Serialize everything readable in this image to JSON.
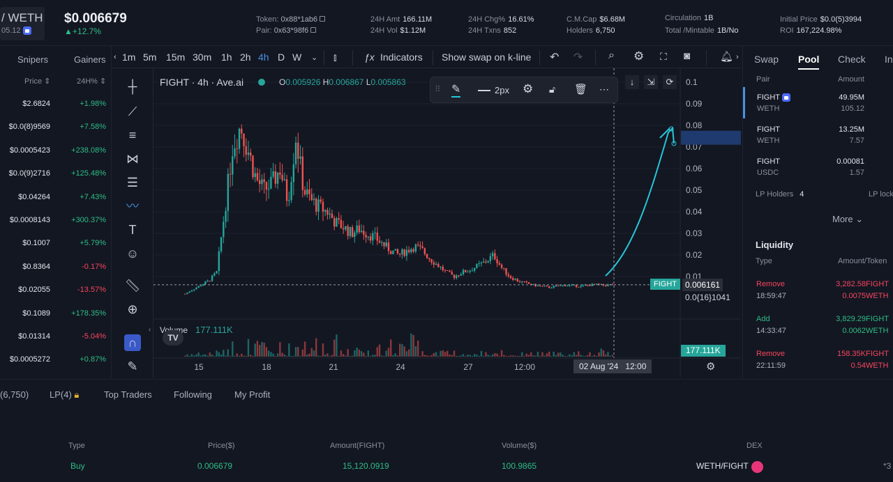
{
  "header": {
    "pair_short": "/ WETH",
    "pair_sub": "05.12",
    "price": "$0.006679",
    "change": "+12.7%",
    "token_label": "Token:",
    "token_value": "0x88*1ab6",
    "pair_label": "Pair:",
    "pair_value": "0x63*98f6",
    "amt_label": "24H Amt",
    "amt_value": "166.11M",
    "vol_label": "24H Vol",
    "vol_value": "$1.12M",
    "chg_label": "24H Chg%",
    "chg_value": "16.61%",
    "txns_label": "24H Txns",
    "txns_value": "852",
    "cmcap_label": "C.M.Cap",
    "cmcap_value": "$6.68M",
    "holders_label": "Holders",
    "holders_value": "6,750",
    "circ_label": "Circulation",
    "circ_value": "1B",
    "total_label": "Total /Mintable",
    "total_value": "1B/No",
    "init_label": "Initial Price",
    "init_value": "$0.0(5)3994",
    "roi_label": "ROI",
    "roi_value": "167,224.98%"
  },
  "left": {
    "tabs": [
      "Snipers",
      "Gainers"
    ],
    "col_price": "Price",
    "col_change": "24H%",
    "rows": [
      {
        "price": "$2.6824",
        "change": "+1.98%",
        "dir": "up"
      },
      {
        "price": "$0.0(8)9569",
        "change": "+7.58%",
        "dir": "up"
      },
      {
        "price": "$0.0005423",
        "change": "+238.08%",
        "dir": "up"
      },
      {
        "price": "$0.0(9)2716",
        "change": "+125.48%",
        "dir": "up"
      },
      {
        "price": "$0.04264",
        "change": "+7.43%",
        "dir": "up"
      },
      {
        "price": "$0.0008143",
        "change": "+300.37%",
        "dir": "up"
      },
      {
        "price": "$0.1007",
        "change": "+5.79%",
        "dir": "up"
      },
      {
        "price": "$0.8364",
        "change": "-0.17%",
        "dir": "dn"
      },
      {
        "price": "$0.02055",
        "change": "-13.57%",
        "dir": "dn"
      },
      {
        "price": "$0.1089",
        "change": "+178.35%",
        "dir": "up"
      },
      {
        "price": "$0.01314",
        "change": "-5.04%",
        "dir": "dn"
      },
      {
        "price": "$0.0005272",
        "change": "+0.87%",
        "dir": "up"
      }
    ]
  },
  "toolbar": {
    "timeframes": [
      "1m",
      "5m",
      "15m",
      "30m",
      "1h",
      "2h",
      "4h",
      "D",
      "W"
    ],
    "active_timeframe": "4h",
    "indicators": "Indicators",
    "show_swap": "Show swap on k-line"
  },
  "chart": {
    "legend": "FIGHT · 4h · Ave.ai",
    "o_label": "O",
    "o": "0.005926",
    "h_label": "H",
    "h": "0.006867",
    "l_label": "L",
    "l": "0.005863",
    "stroke_label": "2px",
    "volume_label": "Volume",
    "volume_value": "177.111K",
    "volume_tag": "177.111K",
    "price_tag": "0.006161",
    "fight_tag": "FIGHT",
    "sub_tag": "0.0{16}1041",
    "crosshair_time": "02 Aug '24   12:00",
    "x_ticks": [
      "15",
      "18",
      "21",
      "24",
      "27",
      "12:00"
    ],
    "y_ticks": [
      "0.1",
      "0.09",
      "0.08",
      "0.07",
      "0.06",
      "0.05",
      "0.04",
      "0.03",
      "0.02",
      "0.01"
    ],
    "colors": {
      "up": "#26a69a",
      "down": "#ef5350",
      "drawing": "#26c6da"
    }
  },
  "chart_data": {
    "type": "candlestick",
    "symbol": "FIGHT",
    "interval": "4h",
    "ylim": [
      0,
      0.1
    ],
    "y_ticks": [
      0.1,
      0.09,
      0.08,
      0.07,
      0.06,
      0.05,
      0.04,
      0.03,
      0.02,
      0.01
    ],
    "x_ticks": [
      "15",
      "18",
      "21",
      "24",
      "27",
      "12:00"
    ],
    "close_path": [
      0.002,
      0.004,
      0.006,
      0.008,
      0.012,
      0.04,
      0.07,
      0.08,
      0.068,
      0.055,
      0.05,
      0.053,
      0.06,
      0.045,
      0.075,
      0.05,
      0.045,
      0.042,
      0.04,
      0.035,
      0.033,
      0.03,
      0.032,
      0.03,
      0.028,
      0.025,
      0.022,
      0.02,
      0.022,
      0.024,
      0.022,
      0.018,
      0.015,
      0.012,
      0.01,
      0.012,
      0.013,
      0.015,
      0.017,
      0.02,
      0.014,
      0.01,
      0.008,
      0.007,
      0.006,
      0.0055,
      0.005,
      0.0055,
      0.006,
      0.0058,
      0.0055,
      0.006,
      0.0062,
      0.0059,
      0.0062
    ],
    "current_price": 0.006161,
    "volume_last": "177.111K"
  },
  "right": {
    "tabs": [
      "Swap",
      "Pool",
      "Check",
      "Int"
    ],
    "active_tab": "Pool",
    "col_pair": "Pair",
    "col_amount": "Amount",
    "pools": [
      {
        "a": "FIGHT",
        "b": "WETH",
        "x": "49.95M",
        "y": "105.12",
        "locked": true
      },
      {
        "a": "FIGHT",
        "b": "WETH",
        "x": "13.25M",
        "y": "7.57",
        "locked": false
      },
      {
        "a": "FIGHT",
        "b": "USDC",
        "x": "0.00081",
        "y": "1.57",
        "locked": false
      }
    ],
    "lp_holders_label": "LP Holders",
    "lp_holders_value": "4",
    "lp_lock": "LP lock",
    "more": "More",
    "liquidity": "Liquidity",
    "col_type": "Type",
    "col_amount_token": "Amount/Token",
    "liq_rows": [
      {
        "type": "Remove",
        "time": "18:59:47",
        "x": "3,282.58",
        "y": "0.0075",
        "tx": "FIGHT",
        "ty": "WETH",
        "dir": "dn"
      },
      {
        "type": "Add",
        "time": "14:33:47",
        "x": "3,829.29",
        "y": "0.0062",
        "tx": "FIGHT",
        "ty": "WETH",
        "dir": "up"
      },
      {
        "type": "Remove",
        "time": "22:11:59",
        "x": "158.35K",
        "y": "0.54",
        "tx": "FIGHT",
        "ty": "WETH",
        "dir": "dn"
      }
    ]
  },
  "bottom": {
    "tabs": [
      "(6,750)",
      "LP(4)",
      "Top Traders",
      "Following",
      "My Profit"
    ],
    "headers": {
      "type": "Type",
      "price": "Price($)",
      "amount": "Amount(FIGHT)",
      "volume": "Volume($)",
      "dex": "DEX"
    },
    "row": {
      "type": "Buy",
      "price": "0.006679",
      "amount": "15,120.0919",
      "volume": "100.9865",
      "dex": "WETH/FIGHT",
      "extra": "*3"
    }
  }
}
